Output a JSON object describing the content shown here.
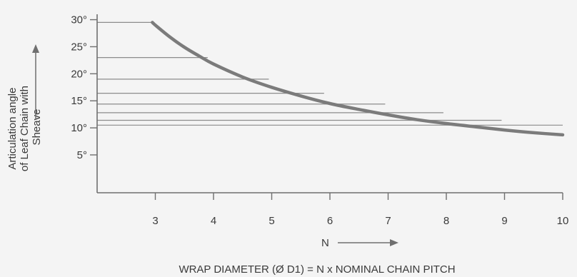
{
  "chart_data": {
    "type": "line",
    "x_ticks": [
      "3",
      "4",
      "5",
      "6",
      "7",
      "8",
      "9",
      "10"
    ],
    "y_ticks": [
      "5°",
      "10°",
      "15°",
      "20°",
      "25°",
      "30°"
    ],
    "xlim": [
      2,
      10
    ],
    "ylim": [
      -2,
      31
    ],
    "ylabel": [
      "Articulation angle",
      "of Leaf Chain with",
      "Sheave"
    ],
    "xlabel": "N",
    "caption": "WRAP DIAMETER (Ø D1) = N x NOMINAL CHAIN PITCH",
    "series": [
      {
        "x": [
          2.95,
          3,
          3.25,
          3.5,
          3.75,
          4,
          4.5,
          5,
          5.5,
          6,
          6.5,
          7,
          7.5,
          8,
          8.5,
          9,
          9.5,
          10
        ],
        "values": [
          29.5,
          29.0,
          26.8,
          24.9,
          23.3,
          21.8,
          19.4,
          17.5,
          15.9,
          14.5,
          13.4,
          12.4,
          11.5,
          10.8,
          10.2,
          9.6,
          9.1,
          8.7
        ]
      }
    ],
    "reference_lines": [
      {
        "y": 29.5,
        "x_end": 2.95
      },
      {
        "y": 23.0,
        "x_end": 3.9
      },
      {
        "y": 19.0,
        "x_end": 4.95
      },
      {
        "y": 16.4,
        "x_end": 5.9
      },
      {
        "y": 14.4,
        "x_end": 6.95
      },
      {
        "y": 12.8,
        "x_end": 7.95
      },
      {
        "y": 11.4,
        "x_end": 8.95
      },
      {
        "y": 10.5,
        "x_end": 10.0
      }
    ],
    "colors": {
      "curve": "#7b7b7b",
      "axes": "#6f6f6f",
      "reference": "#8c8c8c",
      "text": "#3a3a3a"
    }
  }
}
